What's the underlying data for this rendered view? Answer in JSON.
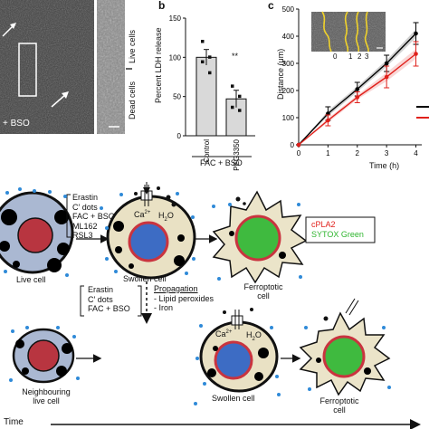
{
  "panel_a": {
    "overlay_label": "+ BSO",
    "side_labels": [
      "Live cells",
      "Dead cells"
    ]
  },
  "panel_b": {
    "letter": "b",
    "significance": "**",
    "xgroup_label": "FAC + BSO"
  },
  "panel_c": {
    "letter": "c",
    "inset_ticks": [
      "0",
      "1",
      "2",
      "3"
    ]
  },
  "chart_data": [
    {
      "type": "bar",
      "ylabel": "Percent LDH release",
      "categories": [
        "Control",
        "PEG3350"
      ],
      "values": [
        100,
        47
      ],
      "error": [
        10,
        11
      ],
      "points": [
        [
          120,
          100,
          94,
          80
        ],
        [
          63,
          50,
          36,
          32
        ]
      ],
      "ylim": [
        0,
        150
      ],
      "yticks": [
        0,
        50,
        100,
        150
      ],
      "colors": [
        "#d9d9d9",
        "#d9d9d9"
      ]
    },
    {
      "type": "line",
      "xlabel": "Time (h)",
      "ylabel": "Distance (μm)",
      "x": [
        0,
        1,
        2,
        3,
        4
      ],
      "xlim": [
        0,
        4.2
      ],
      "ylim": [
        0,
        500
      ],
      "yticks": [
        0,
        100,
        200,
        300,
        400,
        500
      ],
      "series": [
        {
          "color": "#000000",
          "values": [
            0,
            115,
            205,
            300,
            410
          ],
          "error": [
            0,
            25,
            25,
            30,
            40
          ]
        },
        {
          "color": "#e0201b",
          "values": [
            0,
            90,
            175,
            250,
            335
          ],
          "error": [
            0,
            20,
            20,
            40,
            45
          ]
        }
      ]
    }
  ],
  "schematic": {
    "treatments_top": [
      "Erastin",
      "C′ dots",
      "FAC + BSO",
      "ML162",
      "RSL3"
    ],
    "treatments_bottom": [
      "Erastin",
      "C′ dots",
      "FAC + BSO"
    ],
    "propagation_title": "Propagation",
    "propagation_items": [
      "- Lipid peroxides",
      "- Iron"
    ],
    "legend": [
      {
        "label": "cPLA2",
        "color": "#e0201b"
      },
      {
        "label": "SYTOX Green",
        "color": "#2fb52f"
      }
    ],
    "cell_labels": {
      "live": "Live cell",
      "swollen_top": "Swollen cell",
      "ferroptotic_top": [
        "Ferroptotic",
        "cell"
      ],
      "neighbouring": [
        "Neighbouring",
        "live cell"
      ],
      "swollen_bottom": "Swollen cell",
      "ferroptotic_bottom": [
        "Ferroptotic",
        "cell"
      ]
    },
    "ion_labels": {
      "ca_top": "Ca",
      "ca_sup": "2+",
      "h2o_top": "H",
      "h2o_sub": "2",
      "h2o_end": "O"
    },
    "time_label": "Time"
  }
}
